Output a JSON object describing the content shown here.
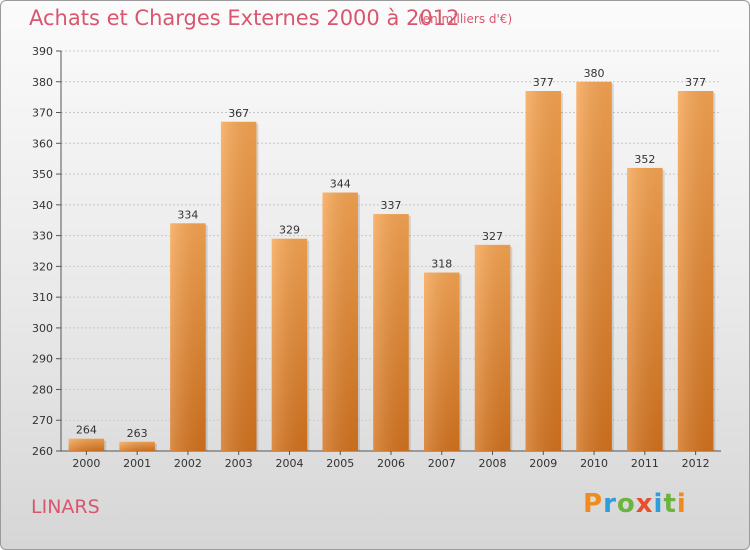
{
  "header": {
    "title": "Achats et Charges Externes 2000 à 2012",
    "subtitle": "(en milliers d'€)"
  },
  "footer": {
    "commune": "LINARS",
    "logo_text": "Proxiti",
    "logo_colors": [
      "#f08c1e",
      "#2d9ed8",
      "#6db33f",
      "#e94e2a",
      "#2d9ed8",
      "#6db33f",
      "#f08c1e"
    ]
  },
  "chart_data": {
    "type": "bar",
    "title": "Achats et Charges Externes 2000 à 2012",
    "subtitle": "(en milliers d'€)",
    "xlabel": "",
    "ylabel": "",
    "categories": [
      "2000",
      "2001",
      "2002",
      "2003",
      "2004",
      "2005",
      "2006",
      "2007",
      "2008",
      "2009",
      "2010",
      "2011",
      "2012"
    ],
    "values": [
      264,
      263,
      334,
      367,
      329,
      344,
      337,
      318,
      327,
      377,
      380,
      352,
      377
    ],
    "ylim": [
      260,
      390
    ],
    "yticks": [
      260,
      270,
      280,
      290,
      300,
      310,
      320,
      330,
      340,
      350,
      360,
      370,
      380,
      390
    ],
    "grid": true,
    "legend": "none",
    "bar_color_top": "#f7a552",
    "bar_color_bottom": "#d4731e",
    "grid_color": "#c8c8c8"
  }
}
